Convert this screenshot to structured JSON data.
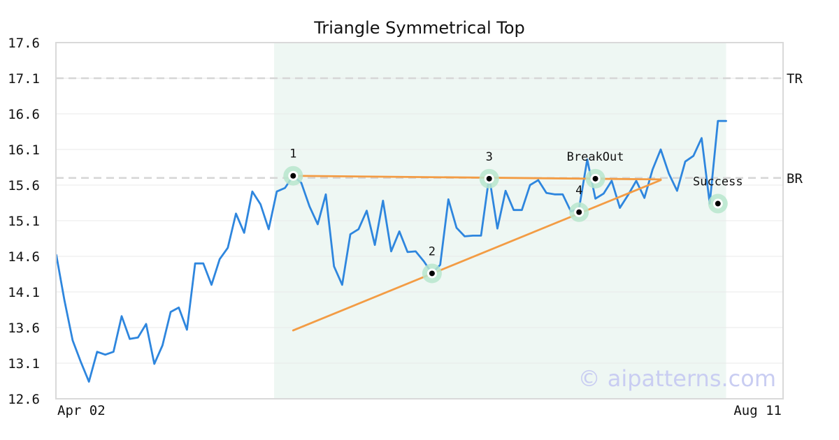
{
  "chart_data": {
    "type": "line",
    "title": "Triangle Symmetrical Top",
    "watermark": "© aipatterns.com",
    "xlabel": "",
    "ylabel": "",
    "x_tick_labels": {
      "start": "Apr 02",
      "end": "Aug 11"
    },
    "x_index_range": [
      0,
      82
    ],
    "ylim": [
      12.6,
      17.6
    ],
    "y_ticks": [
      12.6,
      13.1,
      13.6,
      14.1,
      14.6,
      15.1,
      15.6,
      16.1,
      16.6,
      17.1,
      17.6
    ],
    "grid": true,
    "series": [
      {
        "color": "#2e86de",
        "values": [
          14.62,
          13.98,
          13.42,
          13.12,
          12.84,
          13.26,
          13.22,
          13.26,
          13.76,
          13.44,
          13.46,
          13.65,
          13.09,
          13.35,
          13.82,
          13.88,
          13.57,
          14.5,
          14.5,
          14.2,
          14.56,
          14.72,
          15.2,
          14.93,
          15.51,
          15.33,
          14.98,
          15.51,
          15.56,
          15.73,
          15.63,
          15.3,
          15.05,
          15.47,
          14.46,
          14.2,
          14.91,
          14.98,
          15.24,
          14.76,
          15.38,
          14.67,
          14.95,
          14.66,
          14.67,
          14.53,
          14.36,
          14.48,
          15.4,
          15.0,
          14.88,
          14.89,
          14.89,
          15.72,
          14.99,
          15.52,
          15.25,
          15.25,
          15.6,
          15.67,
          15.49,
          15.47,
          15.47,
          15.23,
          15.27,
          15.96,
          15.41,
          15.48,
          15.66,
          15.28,
          15.46,
          15.66,
          15.42,
          15.82,
          16.1,
          15.76,
          15.52,
          15.93,
          16.01,
          16.26,
          15.34,
          16.5,
          16.5
        ],
        "x_last_index": 82
      }
    ],
    "highlight_region": {
      "start": 27,
      "end": 82,
      "color": "#eef7f3"
    },
    "reference_lines": [
      {
        "label": "TR",
        "y": 17.1
      },
      {
        "label": "BR",
        "y": 15.7
      }
    ],
    "trendlines": [
      {
        "color": "#f39c44",
        "from": [
          29,
          15.73
        ],
        "to": [
          74,
          15.68
        ]
      },
      {
        "color": "#f39c44",
        "from": [
          29,
          13.56
        ],
        "to": [
          74,
          15.67
        ]
      }
    ],
    "points": [
      {
        "label": "1",
        "x": 29,
        "y": 15.73,
        "label_pos": "above"
      },
      {
        "label": "2",
        "x": 46,
        "y": 14.36,
        "label_pos": "above"
      },
      {
        "label": "3",
        "x": 53,
        "y": 15.69,
        "label_pos": "above"
      },
      {
        "label": "4",
        "x": 64,
        "y": 15.22,
        "label_pos": "above"
      },
      {
        "label": "BreakOut",
        "x": 66,
        "y": 15.69,
        "label_pos": "above"
      },
      {
        "label": "Success",
        "x": 81,
        "y": 15.34,
        "label_pos": "above"
      }
    ]
  }
}
